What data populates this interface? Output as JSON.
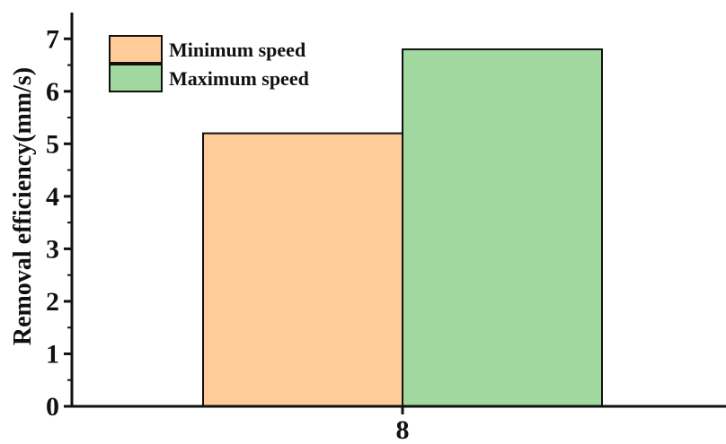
{
  "chart_data": {
    "type": "bar",
    "categories": [
      "8"
    ],
    "series": [
      {
        "name": "Minimum speed",
        "values": [
          5.2
        ],
        "color": "#FFCC99"
      },
      {
        "name": "Maximum speed",
        "values": [
          6.8
        ],
        "color": "#A0D8A0"
      }
    ],
    "title": "",
    "xlabel": "",
    "ylabel": "Removal efficiency(mm/s)",
    "ylim": [
      0,
      7.5
    ],
    "y_ticks": [
      0,
      1,
      2,
      3,
      4,
      5,
      6,
      7
    ],
    "grid": false,
    "legend_position": "top-left"
  }
}
